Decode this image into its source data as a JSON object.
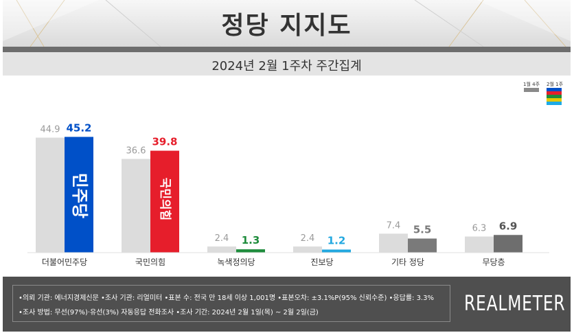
{
  "header": {
    "title": "정당 지지도",
    "subtitle": "2024년 2월 1주차 주간집계"
  },
  "legend": {
    "previous_label": "1월 4주",
    "current_label": "2월 1주",
    "previous_color": "#8a8a8a",
    "current_colors": [
      "#0050c8",
      "#e61e2b",
      "#1e8c3c",
      "#e6c800",
      "#1eaae6"
    ]
  },
  "chart_data": {
    "type": "bar",
    "categories": [
      "더불어민주당",
      "국민의힘",
      "녹색정의당",
      "진보당",
      "기타 정당",
      "무당층"
    ],
    "series": [
      {
        "name": "1월 4주",
        "values": [
          44.9,
          36.6,
          2.4,
          2.4,
          7.4,
          6.3
        ]
      },
      {
        "name": "2월 1주",
        "values": [
          45.2,
          39.8,
          1.3,
          1.2,
          5.5,
          6.9
        ]
      }
    ],
    "current_colors": [
      "#0050c8",
      "#e61e2b",
      "#1e8c3c",
      "#22a8e0",
      "#7a7a7a",
      "#6e6e6e"
    ],
    "current_label_colors": [
      "#0050c8",
      "#e61e2b",
      "#1e8c3c",
      "#22a8e0",
      "#7a7a7a",
      "#555555"
    ],
    "previous_color": "#dcdcdc",
    "logos": [
      "민주당",
      "국민의힘"
    ],
    "ylim": [
      0,
      50
    ],
    "grid": false
  },
  "footer": {
    "line1": "•의뢰 기관: 에너지경제신문  •조사 기관: 리얼미터 •표본 수: 전국 만 18세 이상 1,001명 •표본오차: ±3.1%P(95% 신뢰수준) •응답률: 3.3%",
    "line2": "•조사 방법: 무선(97%)·유선(3%) 자동응답 전화조사 •조사 기간: 2024년 2월 1일(목) ~ 2월 2일(금)",
    "brand": "REALMETER"
  }
}
